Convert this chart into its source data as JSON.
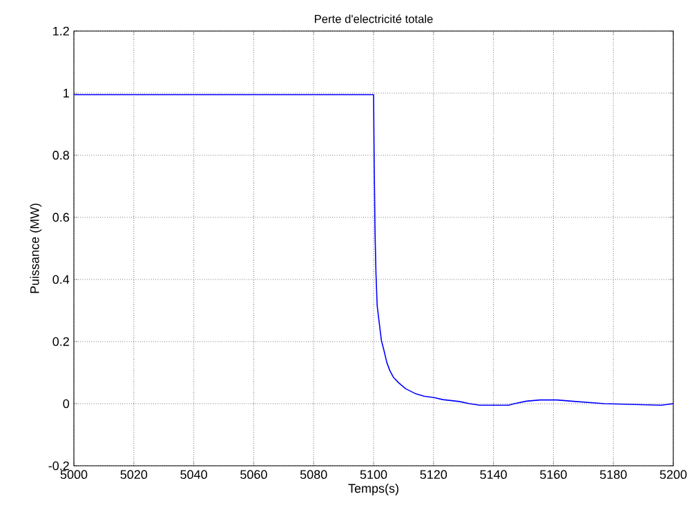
{
  "chart_data": {
    "type": "line",
    "title": "Perte d'electricité totale",
    "xlabel": "Temps(s)",
    "ylabel": "Puissance (MW)",
    "x": [
      5000,
      5100,
      5100.2,
      5100.5,
      5100.8,
      5101.2,
      5101.9,
      5102.6,
      5103.5,
      5104.4,
      5105.4,
      5106.6,
      5108.4,
      5110.7,
      5113.8,
      5116.9,
      5120,
      5123.1,
      5128.6,
      5132,
      5135.5,
      5145,
      5147,
      5151,
      5155.5,
      5161.2,
      5166,
      5177,
      5196,
      5200
    ],
    "values": [
      0.995,
      0.995,
      0.774,
      0.544,
      0.418,
      0.315,
      0.259,
      0.204,
      0.17,
      0.133,
      0.107,
      0.085,
      0.067,
      0.048,
      0.033,
      0.024,
      0.02,
      0.013,
      0.007,
      0.0,
      -0.005,
      -0.005,
      0.0,
      0.008,
      0.012,
      0.012,
      0.008,
      0.0,
      -0.005,
      0.0
    ],
    "color": "#0000ff",
    "xlim": [
      5000,
      5200
    ],
    "ylim": [
      -0.2,
      1.2
    ],
    "xticks": [
      5000,
      5020,
      5040,
      5060,
      5080,
      5100,
      5120,
      5140,
      5160,
      5180,
      5200
    ],
    "yticks": [
      {
        "value": -0.2,
        "label": "-0.2"
      },
      {
        "value": 0,
        "label": "0"
      },
      {
        "value": 0.2,
        "label": "0.2"
      },
      {
        "value": 0.4,
        "label": "0.4"
      },
      {
        "value": 0.6,
        "label": "0.6"
      },
      {
        "value": 0.8,
        "label": "0.8"
      },
      {
        "value": 1,
        "label": "1"
      },
      {
        "value": 1.2,
        "label": "1.2"
      }
    ],
    "grid": true,
    "line_style": "solid",
    "marker": "none"
  }
}
